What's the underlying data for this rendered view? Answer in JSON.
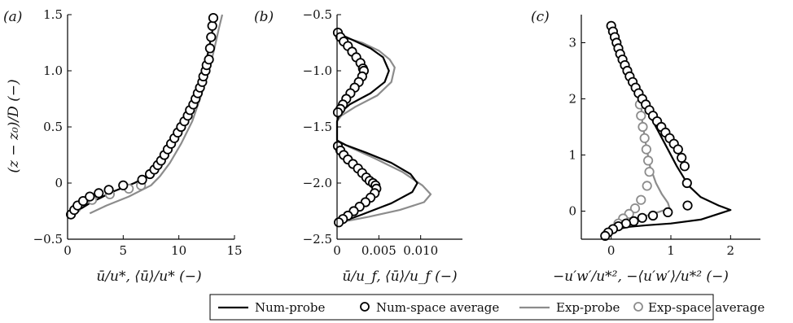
{
  "colors": {
    "num": "#000000",
    "exp": "#8c8c8c"
  },
  "legend": {
    "entries": [
      {
        "label": "Num-probe",
        "style": "line",
        "color": "#000000"
      },
      {
        "label": "Num-space average",
        "style": "marker",
        "color": "#000000"
      },
      {
        "label": "Exp-probe",
        "style": "line",
        "color": "#8c8c8c"
      },
      {
        "label": "Exp-space average",
        "style": "marker",
        "color": "#8c8c8c"
      }
    ],
    "placement": "bottom"
  },
  "chart_data": [
    {
      "panel": "(a)",
      "type": "line",
      "xlabel": "ū/u*, ⟨ū⟩/u* (−)",
      "ylabel": "(z − z₀)/D (−)",
      "xlim": [
        0,
        15
      ],
      "ylim": [
        -0.5,
        1.5
      ],
      "xticks": [
        0,
        5,
        10,
        15
      ],
      "yticks": [
        -0.5,
        0,
        0.5,
        1.0,
        1.5
      ],
      "xtick_labels": [
        "0",
        "5",
        "10",
        "15"
      ],
      "ytick_labels": [
        "−0.5",
        "0",
        "0.5",
        "1.0",
        "1.5"
      ],
      "series": [
        {
          "name": "Num-probe",
          "style": "line",
          "color": "#000000",
          "x": [
            0.5,
            2,
            4,
            6,
            7,
            7.8,
            8.5,
            9.5,
            10.5,
            11.3,
            12,
            12.6,
            13.0,
            13.3
          ],
          "y": [
            -0.27,
            -0.18,
            -0.08,
            0.0,
            0.05,
            0.1,
            0.2,
            0.35,
            0.55,
            0.75,
            0.95,
            1.15,
            1.35,
            1.5
          ]
        },
        {
          "name": "Num-space average",
          "style": "marker",
          "color": "#000000",
          "x": [
            0.3,
            0.6,
            0.9,
            1.4,
            2.0,
            2.8,
            3.7,
            5.0,
            6.7,
            7.4,
            7.8,
            8.1,
            8.4,
            8.7,
            9.0,
            9.3,
            9.6,
            9.9,
            10.2,
            10.5,
            10.8,
            11.0,
            11.3,
            11.5,
            11.7,
            11.9,
            12.1,
            12.2,
            12.4,
            12.5,
            12.7,
            12.8,
            12.9,
            13.0,
            13.1
          ],
          "y": [
            -0.28,
            -0.24,
            -0.2,
            -0.16,
            -0.12,
            -0.09,
            -0.06,
            -0.02,
            0.03,
            0.08,
            0.12,
            0.16,
            0.2,
            0.25,
            0.3,
            0.35,
            0.4,
            0.45,
            0.5,
            0.55,
            0.6,
            0.65,
            0.7,
            0.75,
            0.8,
            0.85,
            0.9,
            0.95,
            1.0,
            1.05,
            1.1,
            1.2,
            1.3,
            1.4,
            1.47
          ]
        },
        {
          "name": "Exp-probe",
          "style": "line",
          "color": "#8c8c8c",
          "x": [
            2.0,
            3.5,
            5.5,
            7.5,
            8.3,
            9.2,
            10.2,
            11.2,
            12.0,
            12.7,
            13.2,
            13.6,
            13.9
          ],
          "y": [
            -0.27,
            -0.2,
            -0.12,
            -0.02,
            0.06,
            0.18,
            0.35,
            0.55,
            0.78,
            1.0,
            1.2,
            1.38,
            1.5
          ]
        },
        {
          "name": "Exp-space average",
          "style": "marker",
          "color": "#8c8c8c",
          "x": [
            0.8,
            2.2,
            3.8,
            5.5,
            6.6
          ],
          "y": [
            -0.22,
            -0.15,
            -0.1,
            -0.05,
            -0.02
          ]
        }
      ]
    },
    {
      "panel": "(b)",
      "type": "line",
      "xlabel": "ū/u_f, ⟨ū⟩/u_f (−)",
      "ylabel": "",
      "xlim": [
        0,
        0.015
      ],
      "ylim": [
        -2.5,
        -0.5
      ],
      "xticks": [
        0,
        0.005,
        0.01
      ],
      "yticks": [
        -2.5,
        -2.0,
        -1.5,
        -1.0,
        -0.5
      ],
      "xtick_labels": [
        "0",
        "0.005",
        "0.010"
      ],
      "ytick_labels": [
        "−2.5",
        "−2.0",
        "−1.5",
        "−1.0",
        "−0.5"
      ],
      "series": [
        {
          "name": "Num-probe",
          "style": "line",
          "color": "#000000",
          "x": [
            0,
            0.0005,
            0.002,
            0.004,
            0.0055,
            0.0062,
            0.0057,
            0.004,
            0.0015,
            0.0003,
            0,
            0,
            0.001,
            0.0035,
            0.0065,
            0.0088,
            0.0096,
            0.009,
            0.0065,
            0.003,
            0.0008,
            0
          ],
          "y": [
            -0.66,
            -0.68,
            -0.73,
            -0.8,
            -0.88,
            -1.0,
            -1.1,
            -1.2,
            -1.3,
            -1.38,
            -1.45,
            -1.62,
            -1.66,
            -1.73,
            -1.82,
            -1.92,
            -2.0,
            -2.08,
            -2.18,
            -2.28,
            -2.34,
            -2.37
          ]
        },
        {
          "name": "Num-space average",
          "style": "marker",
          "color": "#000000",
          "x": [
            0.0001,
            0.0004,
            0.0008,
            0.0013,
            0.0018,
            0.0023,
            0.0028,
            0.0031,
            0.0032,
            0.003,
            0.0026,
            0.0021,
            0.0016,
            0.0011,
            0.0007,
            0.0004,
            0.0001,
            0.0001,
            0.0004,
            0.0008,
            0.0013,
            0.0019,
            0.0025,
            0.003,
            0.0035,
            0.0039,
            0.0043,
            0.0046,
            0.0047,
            0.0045,
            0.004,
            0.0034,
            0.0027,
            0.002,
            0.0013,
            0.0007,
            0.0002
          ],
          "y": [
            -0.66,
            -0.7,
            -0.74,
            -0.78,
            -0.83,
            -0.88,
            -0.93,
            -0.98,
            -1.0,
            -1.05,
            -1.1,
            -1.15,
            -1.2,
            -1.25,
            -1.3,
            -1.34,
            -1.37,
            -1.67,
            -1.71,
            -1.75,
            -1.79,
            -1.83,
            -1.87,
            -1.91,
            -1.95,
            -1.98,
            -2.0,
            -2.02,
            -2.05,
            -2.09,
            -2.13,
            -2.17,
            -2.21,
            -2.25,
            -2.29,
            -2.32,
            -2.35
          ]
        },
        {
          "name": "Exp-probe",
          "style": "line",
          "color": "#8c8c8c",
          "x": [
            0,
            0.0008,
            0.003,
            0.005,
            0.0063,
            0.0069,
            0.0065,
            0.0048,
            0.0022,
            0.0005,
            0,
            0,
            0.0015,
            0.0045,
            0.0078,
            0.0102,
            0.0112,
            0.0104,
            0.0075,
            0.0038,
            0.001,
            0
          ],
          "y": [
            -0.68,
            -0.7,
            -0.75,
            -0.82,
            -0.9,
            -0.97,
            -1.1,
            -1.22,
            -1.32,
            -1.4,
            -1.45,
            -1.62,
            -1.68,
            -1.78,
            -1.9,
            -2.02,
            -2.1,
            -2.17,
            -2.24,
            -2.3,
            -2.34,
            -2.37
          ]
        }
      ]
    },
    {
      "panel": "(c)",
      "type": "line",
      "xlabel": "−u′w′/u*², −⟨u′w′⟩/u*² (−)",
      "ylabel": "",
      "xlim": [
        -0.5,
        2.5
      ],
      "ylim": [
        -0.5,
        3.5
      ],
      "xticks": [
        0,
        1,
        2
      ],
      "yticks": [
        0,
        1,
        2,
        3
      ],
      "xtick_labels": [
        "0",
        "1",
        "2"
      ],
      "ytick_labels": [
        "0",
        "1",
        "2",
        "3"
      ],
      "series": [
        {
          "name": "Num-probe",
          "style": "line",
          "color": "#000000",
          "x": [
            0.0,
            0.1,
            0.3,
            0.5,
            0.7,
            0.9,
            1.1,
            1.3,
            1.5,
            1.8,
            2.0,
            1.5,
            1.0,
            0.6,
            0.3,
            0.1,
            -0.1,
            -0.15
          ],
          "y": [
            3.28,
            3.0,
            2.5,
            2.0,
            1.6,
            1.2,
            0.8,
            0.45,
            0.25,
            0.1,
            0.02,
            -0.15,
            -0.22,
            -0.25,
            -0.28,
            -0.32,
            -0.38,
            -0.45
          ]
        },
        {
          "name": "Num-space average",
          "style": "marker",
          "color": "#000000",
          "x": [
            0.0,
            0.03,
            0.06,
            0.09,
            0.12,
            0.15,
            0.19,
            0.23,
            0.27,
            0.31,
            0.36,
            0.41,
            0.46,
            0.52,
            0.58,
            0.64,
            0.7,
            0.77,
            0.84,
            0.91,
            0.98,
            1.05,
            1.12,
            1.18,
            1.23,
            1.27,
            1.28,
            0.95,
            0.7,
            0.52,
            0.38,
            0.25,
            0.12,
            0.03,
            -0.05,
            -0.1
          ],
          "y": [
            3.3,
            3.2,
            3.1,
            3.0,
            2.9,
            2.8,
            2.7,
            2.6,
            2.5,
            2.4,
            2.3,
            2.2,
            2.1,
            2.0,
            1.9,
            1.8,
            1.7,
            1.6,
            1.5,
            1.4,
            1.3,
            1.2,
            1.1,
            0.95,
            0.8,
            0.5,
            0.1,
            -0.02,
            -0.08,
            -0.12,
            -0.18,
            -0.22,
            -0.27,
            -0.32,
            -0.38,
            -0.44
          ]
        },
        {
          "name": "Exp-probe",
          "style": "line",
          "color": "#8c8c8c",
          "x": [
            0.5,
            0.52,
            0.58,
            0.65,
            0.75,
            0.85,
            0.95,
            0.98,
            0.7,
            0.45,
            0.25
          ],
          "y": [
            1.97,
            1.6,
            1.2,
            0.8,
            0.5,
            0.3,
            0.15,
            0.05,
            -0.05,
            -0.12,
            -0.2
          ]
        },
        {
          "name": "Exp-space average",
          "style": "marker",
          "color": "#8c8c8c",
          "x": [
            0.48,
            0.5,
            0.53,
            0.56,
            0.59,
            0.62,
            0.64,
            0.6,
            0.5,
            0.4,
            0.3,
            0.2,
            0.12
          ],
          "y": [
            1.9,
            1.7,
            1.5,
            1.3,
            1.1,
            0.9,
            0.7,
            0.45,
            0.2,
            0.05,
            -0.05,
            -0.13,
            -0.22
          ]
        }
      ]
    }
  ]
}
